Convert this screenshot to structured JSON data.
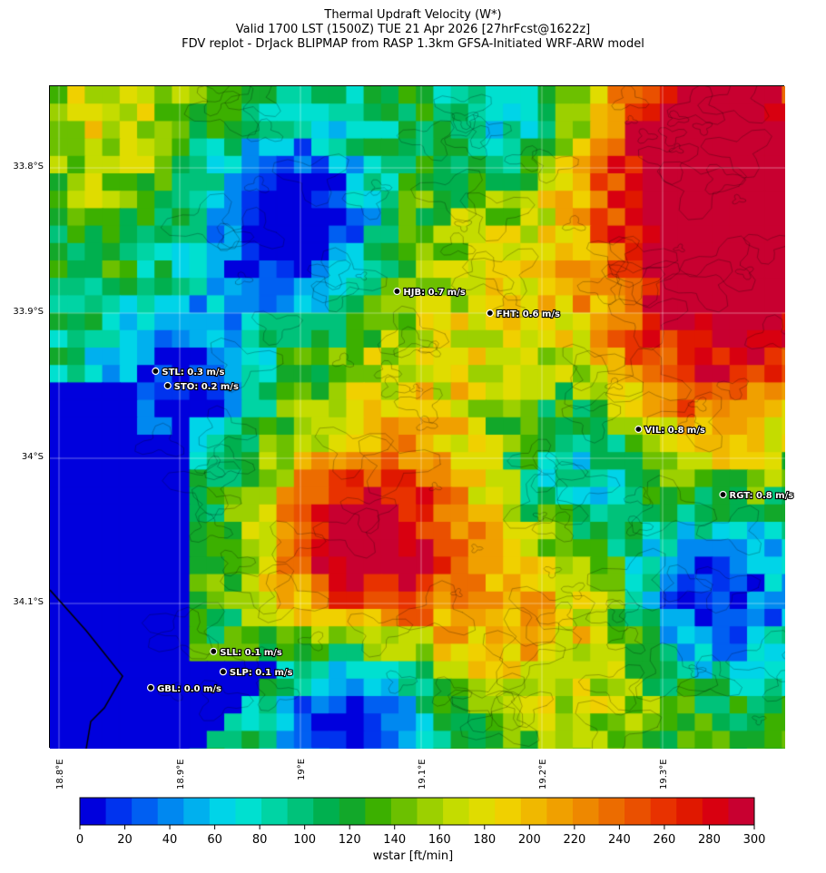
{
  "title_lines": [
    "Thermal Updraft Velocity (W*)",
    "Valid 1700 LST (1500Z) TUE 21 Apr 2026 [27hrFcst@1622z]",
    "FDV replot - DrJack BLIPMAP from RASP 1.3km GFSA-Initiated WRF-ARW model"
  ],
  "lat_labels": [
    "33.8°S",
    "33.9°S",
    "34°S",
    "34.1°S"
  ],
  "lon_labels": [
    "18.8°E",
    "18.9°E",
    "19°E",
    "19.1°E",
    "19.2°E",
    "19.3°E"
  ],
  "stations": [
    {
      "label": "HJB: 0.7 m/s",
      "lon": 19.08,
      "lat": -33.885,
      "value": 0.7
    },
    {
      "label": "FHT: 0.6 m/s",
      "lon": 19.157,
      "lat": -33.9,
      "value": 0.6
    },
    {
      "label": "STL: 0.3 m/s",
      "lon": 18.88,
      "lat": -33.94,
      "value": 0.3
    },
    {
      "label": "STO: 0.2 m/s",
      "lon": 18.89,
      "lat": -33.95,
      "value": 0.2
    },
    {
      "label": "VIL: 0.8 m/s",
      "lon": 19.28,
      "lat": -33.98,
      "value": 0.8
    },
    {
      "label": "RGT: 0.8 m/s",
      "lon": 19.35,
      "lat": -34.025,
      "value": 0.8
    },
    {
      "label": "SLL: 0.1 m/s",
      "lon": 18.928,
      "lat": -34.133,
      "value": 0.1
    },
    {
      "label": "SLP: 0.1 m/s",
      "lon": 18.936,
      "lat": -34.147,
      "value": 0.1
    },
    {
      "label": "GBL: 0.0 m/s",
      "lon": 18.876,
      "lat": -34.158,
      "value": 0.0
    }
  ],
  "colorbar": {
    "title": "wstar [ft/min]",
    "min": 0,
    "max": 300,
    "tick_labels": [
      "0",
      "20",
      "40",
      "60",
      "80",
      "100",
      "120",
      "140",
      "160",
      "180",
      "200",
      "220",
      "240",
      "260",
      "280",
      "300"
    ],
    "colors": [
      "#0000dd",
      "#0033ee",
      "#005ff2",
      "#0088f0",
      "#00b0ee",
      "#00d4e8",
      "#00e0d0",
      "#00d4a4",
      "#00c27a",
      "#00b04f",
      "#12a82a",
      "#3cb000",
      "#6cc000",
      "#9cd000",
      "#c4dc00",
      "#e0dc00",
      "#f0d000",
      "#f0b800",
      "#f0a000",
      "#ee8800",
      "#ec6c00",
      "#ea5000",
      "#e83200",
      "#e01800",
      "#d80010",
      "#c80030"
    ]
  },
  "map": {
    "lon_range": [
      18.8,
      19.41
    ],
    "lat_range": [
      -34.2,
      -33.74
    ],
    "grid": true,
    "ocean_color": "#0000ee"
  }
}
